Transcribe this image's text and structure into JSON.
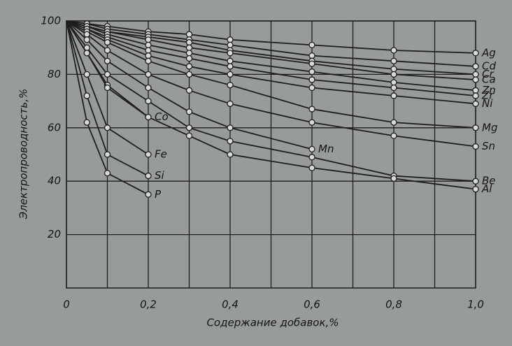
{
  "chart_data": {
    "type": "line",
    "xlabel": "Содержание добавок,%",
    "ylabel": "Электропроводность,%",
    "x": [
      0,
      0.05,
      0.1,
      0.2,
      0.3,
      0.4,
      0.6,
      0.8,
      1.0
    ],
    "xlim": [
      0,
      1.0
    ],
    "ylim": [
      0,
      100
    ],
    "xticks": [
      0,
      {
        "value": 0.2,
        "label": "0,2"
      },
      {
        "value": 0.4,
        "label": "0,4"
      },
      {
        "value": 0.6,
        "label": "0,6"
      },
      {
        "value": 0.8,
        "label": "0,8"
      },
      {
        "value": 1.0,
        "label": "1,0"
      }
    ],
    "x_minor_grid": [
      0.1,
      0.3,
      0.5,
      0.7,
      0.9
    ],
    "yticks": [
      20,
      40,
      60,
      80,
      100
    ],
    "grid": true,
    "series": [
      {
        "name": "Ag",
        "color": "#1e1e1e",
        "values": [
          100,
          99,
          98,
          96,
          95,
          93,
          91,
          89,
          88
        ]
      },
      {
        "name": "Cd",
        "color": "#1e1e1e",
        "values": [
          100,
          99,
          97,
          95,
          93,
          91,
          87,
          85,
          83
        ]
      },
      {
        "name": "Cr",
        "color": "#1e1e1e",
        "values": [
          100,
          98,
          96,
          94,
          92,
          89,
          85,
          82,
          80
        ]
      },
      {
        "name": "Ca",
        "color": "#1e1e1e",
        "values": [
          100,
          98,
          96,
          93,
          90,
          88,
          84,
          80,
          78
        ]
      },
      {
        "name": "Zn",
        "color": "#1e1e1e",
        "values": [
          100,
          98,
          95,
          91,
          88,
          85,
          81,
          77,
          74
        ]
      },
      {
        "name": "Zr",
        "color": "#1e1e1e",
        "values": [
          100,
          97,
          94,
          89,
          86,
          83,
          78,
          75,
          72
        ]
      },
      {
        "name": "Ni",
        "color": "#1e1e1e",
        "values": [
          100,
          97,
          93,
          87,
          83,
          80,
          75,
          72,
          69
        ]
      },
      {
        "name": "Mg",
        "color": "#1e1e1e",
        "values": [
          100,
          96,
          92,
          85,
          80,
          76,
          67,
          62,
          60
        ]
      },
      {
        "name": "Sn",
        "color": "#1e1e1e",
        "values": [
          100,
          95,
          89,
          80,
          74,
          69,
          62,
          57,
          53
        ]
      },
      {
        "name": "Mn",
        "color": "#1e1e1e",
        "values": [
          100,
          93,
          85,
          75,
          66,
          60,
          52,
          null,
          null
        ]
      },
      {
        "name": "Be",
        "color": "#1e1e1e",
        "values": [
          100,
          90,
          80,
          70,
          60,
          55,
          49,
          42,
          40
        ]
      },
      {
        "name": "Al",
        "color": "#1e1e1e",
        "values": [
          100,
          88,
          76,
          64,
          57,
          50,
          45,
          41,
          37
        ]
      },
      {
        "name": "Co",
        "color": "#1e1e1e",
        "values": [
          100,
          88,
          75,
          64,
          null,
          null,
          null,
          null,
          null
        ]
      },
      {
        "name": "Fe",
        "color": "#1e1e1e",
        "values": [
          100,
          80,
          60,
          50,
          null,
          null,
          null,
          null,
          null
        ]
      },
      {
        "name": "Si",
        "color": "#1e1e1e",
        "values": [
          100,
          72,
          50,
          42,
          null,
          null,
          null,
          null,
          null
        ]
      },
      {
        "name": "P",
        "color": "#1e1e1e",
        "values": [
          100,
          62,
          43,
          35,
          null,
          null,
          null,
          null,
          null
        ]
      }
    ]
  }
}
